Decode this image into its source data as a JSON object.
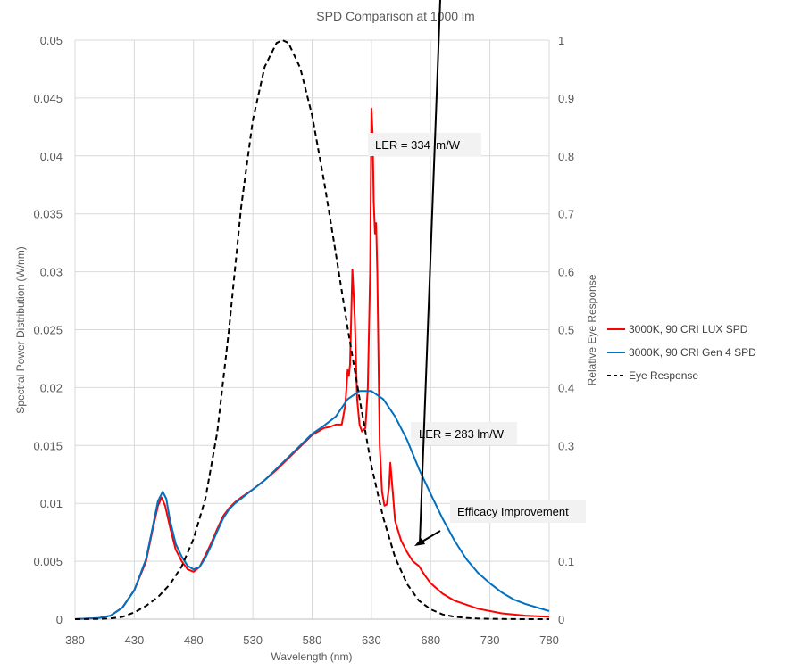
{
  "chart_data": {
    "type": "line",
    "title": "SPD Comparison at 1000 lm",
    "xlabel": "Wavelength (nm)",
    "ylabel": "Spectral Power Distribution (W/nm)",
    "y2label": "Relative Eye Response",
    "xlim": [
      380,
      780
    ],
    "ylim": [
      0,
      0.05
    ],
    "y2lim": [
      0,
      1
    ],
    "xticks": [
      "380",
      "430",
      "480",
      "530",
      "580",
      "630",
      "680",
      "730",
      "780"
    ],
    "yticks": [
      "0",
      "0.005",
      "0.01",
      "0.015",
      "0.02",
      "0.025",
      "0.03",
      "0.035",
      "0.04",
      "0.045",
      "0.05"
    ],
    "y2ticks": [
      "0",
      "0.1",
      "0.2",
      "0.3",
      "0.4",
      "0.5",
      "0.6",
      "0.7",
      "0.8",
      "0.9",
      "1"
    ],
    "grid": true,
    "legend_position": "right",
    "series": [
      {
        "name": "3000K, 90 CRI LUX SPD",
        "color": "#ff0000",
        "axis": "left",
        "style": "solid",
        "x": [
          380,
          400,
          410,
          420,
          430,
          440,
          445,
          450,
          453,
          456,
          460,
          465,
          470,
          475,
          480,
          485,
          490,
          495,
          500,
          505,
          510,
          515,
          520,
          530,
          540,
          550,
          560,
          570,
          580,
          590,
          595,
          600,
          605,
          608,
          610,
          611,
          612,
          614,
          616,
          618,
          620,
          622,
          625,
          627,
          629,
          630,
          631,
          632,
          633,
          634,
          635,
          637,
          639,
          641,
          643,
          645,
          646,
          648,
          650,
          655,
          660,
          665,
          670,
          675,
          680,
          690,
          700,
          720,
          740,
          760,
          780
        ],
        "y": [
          0,
          0.0001,
          0.0003,
          0.001,
          0.0025,
          0.005,
          0.0075,
          0.0098,
          0.0105,
          0.0098,
          0.008,
          0.006,
          0.005,
          0.0043,
          0.0041,
          0.0045,
          0.0055,
          0.0066,
          0.0078,
          0.0089,
          0.0096,
          0.0101,
          0.0105,
          0.0112,
          0.012,
          0.0129,
          0.0139,
          0.0149,
          0.0159,
          0.0165,
          0.0166,
          0.0168,
          0.0168,
          0.0185,
          0.0215,
          0.021,
          0.022,
          0.0302,
          0.026,
          0.019,
          0.0168,
          0.0162,
          0.0165,
          0.02,
          0.03,
          0.0441,
          0.042,
          0.036,
          0.0333,
          0.0342,
          0.03,
          0.015,
          0.011,
          0.0098,
          0.0099,
          0.0115,
          0.0135,
          0.011,
          0.0085,
          0.0068,
          0.0058,
          0.005,
          0.0046,
          0.0038,
          0.0031,
          0.0022,
          0.0016,
          0.0009,
          0.0005,
          0.0003,
          0.0002
        ]
      },
      {
        "name": "3000K, 90 CRI Gen 4 SPD",
        "color": "#0070c0",
        "axis": "left",
        "style": "solid",
        "x": [
          380,
          400,
          410,
          420,
          430,
          440,
          445,
          450,
          454,
          457,
          460,
          465,
          470,
          475,
          480,
          485,
          490,
          495,
          500,
          505,
          510,
          515,
          520,
          530,
          540,
          550,
          560,
          570,
          580,
          590,
          600,
          610,
          620,
          630,
          640,
          650,
          660,
          670,
          680,
          690,
          700,
          710,
          720,
          730,
          740,
          750,
          760,
          770,
          780
        ],
        "y": [
          0,
          0.0001,
          0.0003,
          0.001,
          0.0025,
          0.0052,
          0.0077,
          0.0102,
          0.011,
          0.0104,
          0.0086,
          0.0065,
          0.0054,
          0.0046,
          0.0043,
          0.0045,
          0.0053,
          0.0064,
          0.0076,
          0.0087,
          0.0095,
          0.01,
          0.0104,
          0.0112,
          0.012,
          0.013,
          0.014,
          0.015,
          0.016,
          0.0167,
          0.0175,
          0.019,
          0.0197,
          0.0197,
          0.019,
          0.0175,
          0.0155,
          0.013,
          0.0108,
          0.0087,
          0.0068,
          0.0052,
          0.004,
          0.0031,
          0.0023,
          0.0017,
          0.0013,
          0.001,
          0.0007
        ]
      },
      {
        "name": "Eye Response",
        "color": "#000000",
        "axis": "right",
        "style": "dashed",
        "x": [
          380,
          400,
          410,
          420,
          430,
          440,
          450,
          460,
          470,
          480,
          490,
          500,
          510,
          520,
          530,
          540,
          550,
          555,
          560,
          570,
          580,
          590,
          600,
          610,
          620,
          630,
          640,
          650,
          660,
          670,
          680,
          690,
          700,
          710,
          720,
          740,
          760,
          780
        ],
        "y": [
          0,
          0.0004,
          0.0012,
          0.004,
          0.0116,
          0.023,
          0.038,
          0.06,
          0.091,
          0.139,
          0.208,
          0.323,
          0.503,
          0.71,
          0.862,
          0.954,
          0.995,
          1,
          0.995,
          0.952,
          0.87,
          0.757,
          0.631,
          0.503,
          0.381,
          0.265,
          0.175,
          0.107,
          0.061,
          0.032,
          0.017,
          0.0082,
          0.0041,
          0.0021,
          0.001,
          0.00025,
          6e-05,
          0
        ]
      }
    ],
    "annotations": [
      {
        "text": "LER = 334 lm/W",
        "x": 630,
        "y": 0.041
      },
      {
        "text": "LER = 283 lm/W",
        "x": 660,
        "y": 0.0159
      },
      {
        "text": "Efficacy Improvement",
        "x": 690,
        "y": 0.0092
      }
    ]
  }
}
